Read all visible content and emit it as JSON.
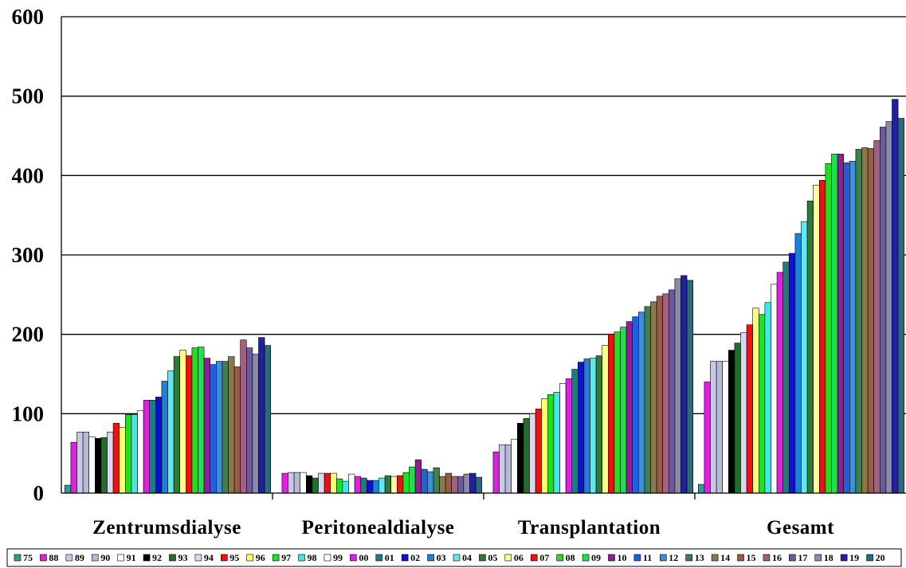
{
  "chart_data": {
    "type": "bar",
    "title": "",
    "xlabel": "",
    "ylabel": "",
    "ylim": [
      0,
      600
    ],
    "yticks": [
      "0",
      "100",
      "200",
      "300",
      "400",
      "500",
      "600"
    ],
    "grid": true,
    "legend_position": "bottom",
    "categories": [
      "Zentrumsdialyse",
      "Peritonealdialyse",
      "Transplantation",
      "Gesamt"
    ],
    "series": [
      {
        "name": "75",
        "color": "#2E9E8E",
        "values": [
          10,
          0,
          0,
          11
        ]
      },
      {
        "name": "88",
        "color": "#E020E0",
        "values": [
          64,
          25,
          52,
          140
        ]
      },
      {
        "name": "89",
        "color": "#C8C8E8",
        "values": [
          77,
          26,
          61,
          166
        ]
      },
      {
        "name": "90",
        "color": "#B8B8D8",
        "values": [
          77,
          26,
          61,
          166
        ]
      },
      {
        "name": "91",
        "color": "#FFFFFF",
        "values": [
          71,
          26,
          68,
          166
        ]
      },
      {
        "name": "92",
        "color": "#000000",
        "values": [
          69,
          22,
          88,
          180
        ]
      },
      {
        "name": "93",
        "color": "#1F6F2A",
        "values": [
          70,
          19,
          94,
          189
        ]
      },
      {
        "name": "94",
        "color": "#D8D8F0",
        "values": [
          77,
          25,
          100,
          202
        ]
      },
      {
        "name": "95",
        "color": "#F01010",
        "values": [
          88,
          25,
          106,
          212
        ]
      },
      {
        "name": "96",
        "color": "#FFFF70",
        "values": [
          83,
          25,
          119,
          233
        ]
      },
      {
        "name": "97",
        "color": "#20E020",
        "values": [
          99,
          18,
          124,
          225
        ]
      },
      {
        "name": "98",
        "color": "#40E8E8",
        "values": [
          99,
          15,
          127,
          240
        ]
      },
      {
        "name": "99",
        "color": "#FFFFFF",
        "values": [
          104,
          24,
          138,
          263
        ]
      },
      {
        "name": "00",
        "color": "#E020E0",
        "values": [
          117,
          21,
          144,
          278
        ]
      },
      {
        "name": "01",
        "color": "#1E7C7C",
        "values": [
          117,
          19,
          156,
          291
        ]
      },
      {
        "name": "02",
        "color": "#1010D0",
        "values": [
          121,
          16,
          165,
          302
        ]
      },
      {
        "name": "03",
        "color": "#2080D8",
        "values": [
          141,
          16,
          169,
          327
        ]
      },
      {
        "name": "04",
        "color": "#60E8F0",
        "values": [
          154,
          19,
          170,
          342
        ]
      },
      {
        "name": "05",
        "color": "#2E7A36",
        "values": [
          172,
          22,
          173,
          368
        ]
      },
      {
        "name": "06",
        "color": "#FFFF90",
        "values": [
          180,
          21,
          186,
          388
        ]
      },
      {
        "name": "07",
        "color": "#F01010",
        "values": [
          173,
          22,
          200,
          394
        ]
      },
      {
        "name": "08",
        "color": "#20E020",
        "values": [
          183,
          26,
          203,
          415
        ]
      },
      {
        "name": "09",
        "color": "#20E050",
        "values": [
          184,
          33,
          209,
          427
        ]
      },
      {
        "name": "10",
        "color": "#902090",
        "values": [
          170,
          42,
          216,
          427
        ]
      },
      {
        "name": "11",
        "color": "#2060E0",
        "values": [
          162,
          30,
          222,
          416
        ]
      },
      {
        "name": "12",
        "color": "#3C8FD8",
        "values": [
          166,
          27,
          228,
          418
        ]
      },
      {
        "name": "13",
        "color": "#3E8050",
        "values": [
          166,
          32,
          235,
          433
        ]
      },
      {
        "name": "14",
        "color": "#8A7A4A",
        "values": [
          172,
          21,
          241,
          435
        ]
      },
      {
        "name": "15",
        "color": "#9A5A4A",
        "values": [
          159,
          25,
          248,
          434
        ]
      },
      {
        "name": "16",
        "color": "#A06080",
        "values": [
          193,
          21,
          251,
          444
        ]
      },
      {
        "name": "17",
        "color": "#6A5AA0",
        "values": [
          183,
          21,
          256,
          461
        ]
      },
      {
        "name": "18",
        "color": "#8A8AA8",
        "values": [
          175,
          24,
          270,
          468
        ]
      },
      {
        "name": "19",
        "color": "#2020A0",
        "values": [
          196,
          25,
          274,
          496
        ]
      },
      {
        "name": "20",
        "color": "#2C6A7E",
        "values": [
          186,
          20,
          268,
          472
        ]
      }
    ]
  }
}
